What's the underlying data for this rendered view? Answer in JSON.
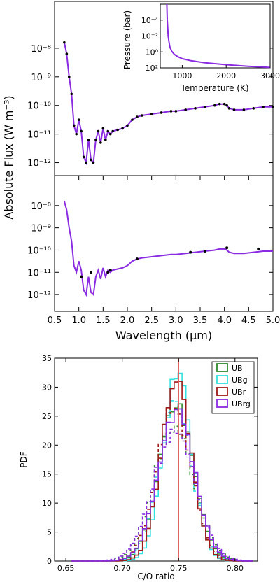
{
  "colors": {
    "purple": "#8a2be2",
    "dots": "#000000",
    "UB": "#2e8b2e",
    "UBg": "#33e0e0",
    "UBr": "#a01818",
    "UBrg": "#8a2be2",
    "true_line": "#e06060"
  },
  "panel_top": {
    "ylabel": "Absolute Flux (W m⁻³)",
    "ylabel_sup": "−3",
    "inset": {
      "xlabel": "Temperature (K)",
      "ylabel": "Pressure (bar)",
      "xticks": [
        "1000",
        "2000",
        "3000"
      ],
      "yticks": [
        "10⁻⁴",
        "10⁻²",
        "10⁰",
        "10²"
      ]
    }
  },
  "panel_mid": {
    "xlabel": "Wavelength (μm)",
    "xticks": [
      "0.5",
      "1.0",
      "1.5",
      "2.0",
      "2.5",
      "3.0",
      "3.5",
      "4.0",
      "4.5",
      "5.0"
    ]
  },
  "flux_yticks": [
    "10⁻⁸",
    "10⁻⁹",
    "10⁻¹⁰",
    "10⁻¹¹",
    "10⁻¹²"
  ],
  "panel_bottom": {
    "xlabel": "C/O ratio",
    "ylabel": "PDF",
    "xticks": [
      "0.65",
      "0.70",
      "0.75",
      "0.80"
    ],
    "yticks": [
      "0",
      "5",
      "10",
      "15",
      "20",
      "25",
      "30",
      "35"
    ],
    "legend": [
      "UB",
      "UBg",
      "UBr",
      "UBrg"
    ]
  },
  "chart_data": [
    {
      "type": "line",
      "panel": "top",
      "xlabel": "",
      "ylabel": "Absolute Flux (W m^-3)",
      "xlim": [
        0.5,
        5.0
      ],
      "ylim_log10": [
        -12.5,
        -7.0
      ],
      "yscale": "log",
      "series": [
        {
          "x": [
            0.7,
            0.75,
            0.8,
            0.85,
            0.9,
            0.95,
            1.0,
            1.05,
            1.1,
            1.15,
            1.2,
            1.25,
            1.3,
            1.35,
            1.4,
            1.45,
            1.5,
            1.55,
            1.6,
            1.65,
            1.7,
            1.8,
            1.9,
            2.0,
            2.1,
            2.2,
            2.3,
            2.5,
            2.7,
            2.9,
            3.0,
            3.2,
            3.4,
            3.6,
            3.8,
            3.9,
            4.0,
            4.05,
            4.1,
            4.2,
            4.4,
            4.6,
            4.8,
            5.0
          ],
          "y": [
            -7.8,
            -8.2,
            -9.0,
            -9.6,
            -10.7,
            -11.0,
            -10.5,
            -10.9,
            -11.8,
            -12.0,
            -11.2,
            -11.9,
            -12.0,
            -11.2,
            -10.9,
            -11.3,
            -10.8,
            -11.2,
            -10.9,
            -11.0,
            -10.9,
            -10.85,
            -10.8,
            -10.7,
            -10.5,
            -10.4,
            -10.35,
            -10.3,
            -10.25,
            -10.2,
            -10.2,
            -10.15,
            -10.1,
            -10.05,
            -10.0,
            -9.95,
            -9.95,
            -10.0,
            -10.1,
            -10.15,
            -10.15,
            -10.1,
            -10.05,
            -10.05
          ]
        }
      ]
    },
    {
      "type": "line",
      "panel": "inset",
      "xlabel": "Temperature (K)",
      "ylabel": "Pressure (bar)",
      "xlim": [
        500,
        3000
      ],
      "ylim_log10": [
        -6,
        2
      ],
      "series": [
        {
          "x": [
            650,
            660,
            670,
            680,
            700,
            720,
            760,
            820,
            900,
            1000,
            1200,
            1500,
            2000,
            2500,
            3000
          ],
          "y": [
            -6,
            -4,
            -3,
            -2,
            -1.2,
            -0.6,
            -0.1,
            0.3,
            0.6,
            0.85,
            1.1,
            1.35,
            1.6,
            1.8,
            1.95
          ]
        }
      ]
    },
    {
      "type": "line",
      "panel": "middle",
      "xlabel": "Wavelength (μm)",
      "ylabel": "Absolute Flux (W m^-3)",
      "xlim": [
        0.5,
        5.0
      ],
      "ylim_log10": [
        -12.5,
        -7.0
      ],
      "series": [
        {
          "x": [
            0.7,
            0.75,
            0.8,
            0.85,
            0.9,
            0.95,
            1.0,
            1.05,
            1.1,
            1.15,
            1.2,
            1.25,
            1.3,
            1.35,
            1.4,
            1.45,
            1.5,
            1.55,
            1.6,
            1.65,
            1.7,
            1.8,
            1.9,
            2.0,
            2.1,
            2.2,
            2.3,
            2.5,
            2.7,
            2.9,
            3.0,
            3.2,
            3.4,
            3.6,
            3.8,
            3.9,
            4.0,
            4.05,
            4.1,
            4.2,
            4.4,
            4.6,
            4.8,
            5.0
          ],
          "y": [
            -7.8,
            -8.2,
            -9.0,
            -9.6,
            -10.7,
            -11.0,
            -10.5,
            -10.9,
            -11.8,
            -12.0,
            -11.2,
            -11.9,
            -12.0,
            -11.2,
            -10.9,
            -11.3,
            -10.8,
            -11.2,
            -10.9,
            -11.0,
            -10.9,
            -10.85,
            -10.8,
            -10.7,
            -10.5,
            -10.4,
            -10.35,
            -10.3,
            -10.25,
            -10.2,
            -10.2,
            -10.15,
            -10.1,
            -10.05,
            -10.0,
            -9.95,
            -9.95,
            -10.0,
            -10.1,
            -10.15,
            -10.15,
            -10.1,
            -10.05,
            -10.05
          ]
        }
      ],
      "points": {
        "x": [
          1.05,
          1.25,
          1.6,
          1.65,
          2.2,
          3.3,
          3.6,
          4.05,
          4.7
        ],
        "y": [
          -11.2,
          -11.0,
          -11.0,
          -10.9,
          -10.4,
          -10.1,
          -10.05,
          -9.9,
          -9.95
        ]
      }
    },
    {
      "type": "histogram",
      "panel": "bottom",
      "xlabel": "C/O ratio",
      "ylabel": "PDF",
      "xlim": [
        0.64,
        0.82
      ],
      "ylim": [
        0,
        35
      ],
      "true_value": 0.75,
      "series": [
        {
          "name": "UB",
          "mean": 0.748,
          "sd": 0.0155,
          "peak": 27
        },
        {
          "name": "UBg",
          "mean": 0.749,
          "sd": 0.0128,
          "peak": 32
        },
        {
          "name": "UBr",
          "mean": 0.748,
          "sd": 0.0135,
          "peak": 31
        },
        {
          "name": "UBrg",
          "mean": 0.748,
          "sd": 0.016,
          "peak": 26
        }
      ]
    }
  ]
}
